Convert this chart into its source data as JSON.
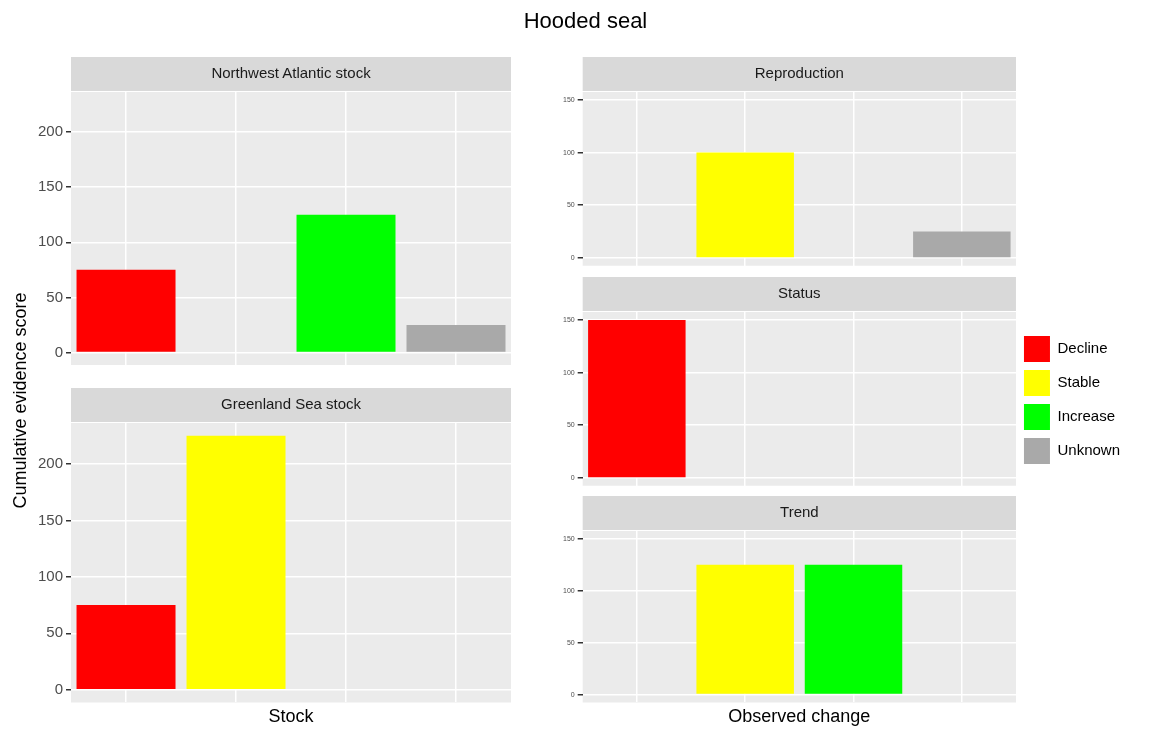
{
  "chart_data": [
    {
      "type": "bar",
      "title": "Northwest Atlantic stock",
      "annotations": [
        "Hooded seal"
      ],
      "ylabel": "Cumulative evidence score",
      "categories": [
        null,
        null,
        null,
        null
      ],
      "ylim": [
        -11.25,
        236.25
      ],
      "yticks": [
        0,
        50,
        100,
        150,
        200
      ],
      "grid": true,
      "tick_labels": "y",
      "series": [
        {
          "color": "#ff0000",
          "values": [
            75,
            null,
            null,
            null
          ]
        },
        {
          "color": "#ffff00",
          "values": [
            null,
            null,
            null,
            null
          ]
        },
        {
          "color": "#00ff00",
          "values": [
            null,
            null,
            125,
            null
          ]
        },
        {
          "color": "#a9a9a9",
          "values": [
            null,
            null,
            null,
            25
          ]
        }
      ]
    },
    {
      "type": "bar",
      "title": "Greenland Sea stock",
      "xlabel": "Stock",
      "categories": [
        null,
        null,
        null,
        null
      ],
      "ylim": [
        -11.25,
        236.25
      ],
      "yticks": [
        0,
        50,
        100,
        150,
        200
      ],
      "grid": true,
      "tick_labels": "y",
      "series": [
        {
          "color": "#ff0000",
          "values": [
            75,
            null,
            null,
            null
          ]
        },
        {
          "color": "#ffff00",
          "values": [
            null,
            225,
            null,
            null
          ]
        },
        {
          "color": "#00ff00",
          "values": [
            null,
            null,
            null,
            null
          ]
        },
        {
          "color": "#a9a9a9",
          "values": [
            null,
            null,
            null,
            null
          ]
        }
      ]
    },
    {
      "type": "bar",
      "title": "Reproduction",
      "categories": [
        null,
        null,
        null,
        null
      ],
      "ylim": [
        -7.5,
        157.5
      ],
      "yticks": [
        0,
        50,
        100,
        150
      ],
      "grid": true,
      "tick_labels": "y",
      "series": [
        {
          "color": "#ff0000",
          "values": [
            null,
            null,
            null,
            null
          ]
        },
        {
          "color": "#ffff00",
          "values": [
            null,
            100,
            null,
            null
          ]
        },
        {
          "color": "#00ff00",
          "values": [
            null,
            null,
            null,
            null
          ]
        },
        {
          "color": "#a9a9a9",
          "values": [
            null,
            null,
            null,
            25
          ]
        }
      ]
    },
    {
      "type": "bar",
      "title": "Status",
      "categories": [
        null,
        null,
        null,
        null
      ],
      "ylim": [
        -7.5,
        157.5
      ],
      "yticks": [
        0,
        50,
        100,
        150
      ],
      "grid": true,
      "tick_labels": "y",
      "legend": "right",
      "series": [
        {
          "name": "Decline",
          "color": "#ff0000",
          "values": [
            150,
            null,
            null,
            null
          ]
        },
        {
          "name": "Stable",
          "color": "#ffff00",
          "values": [
            null,
            null,
            null,
            null
          ]
        },
        {
          "name": "Increase",
          "color": "#00ff00",
          "values": [
            null,
            null,
            null,
            null
          ]
        },
        {
          "name": "Unknown",
          "color": "#a9a9a9",
          "values": [
            null,
            null,
            null,
            null
          ]
        }
      ]
    },
    {
      "type": "bar",
      "title": "Trend",
      "xlabel": "Observed change",
      "categories": [
        null,
        null,
        null,
        null
      ],
      "ylim": [
        -7.5,
        157.5
      ],
      "yticks": [
        0,
        50,
        100,
        150
      ],
      "grid": true,
      "tick_labels": "y",
      "series": [
        {
          "color": "#ff0000",
          "values": [
            null,
            null,
            null,
            null
          ]
        },
        {
          "color": "#ffff00",
          "values": [
            null,
            125,
            null,
            null
          ]
        },
        {
          "color": "#00ff00",
          "values": [
            null,
            null,
            125,
            null
          ]
        },
        {
          "color": "#a9a9a9",
          "values": [
            null,
            null,
            null,
            null
          ]
        }
      ]
    }
  ]
}
